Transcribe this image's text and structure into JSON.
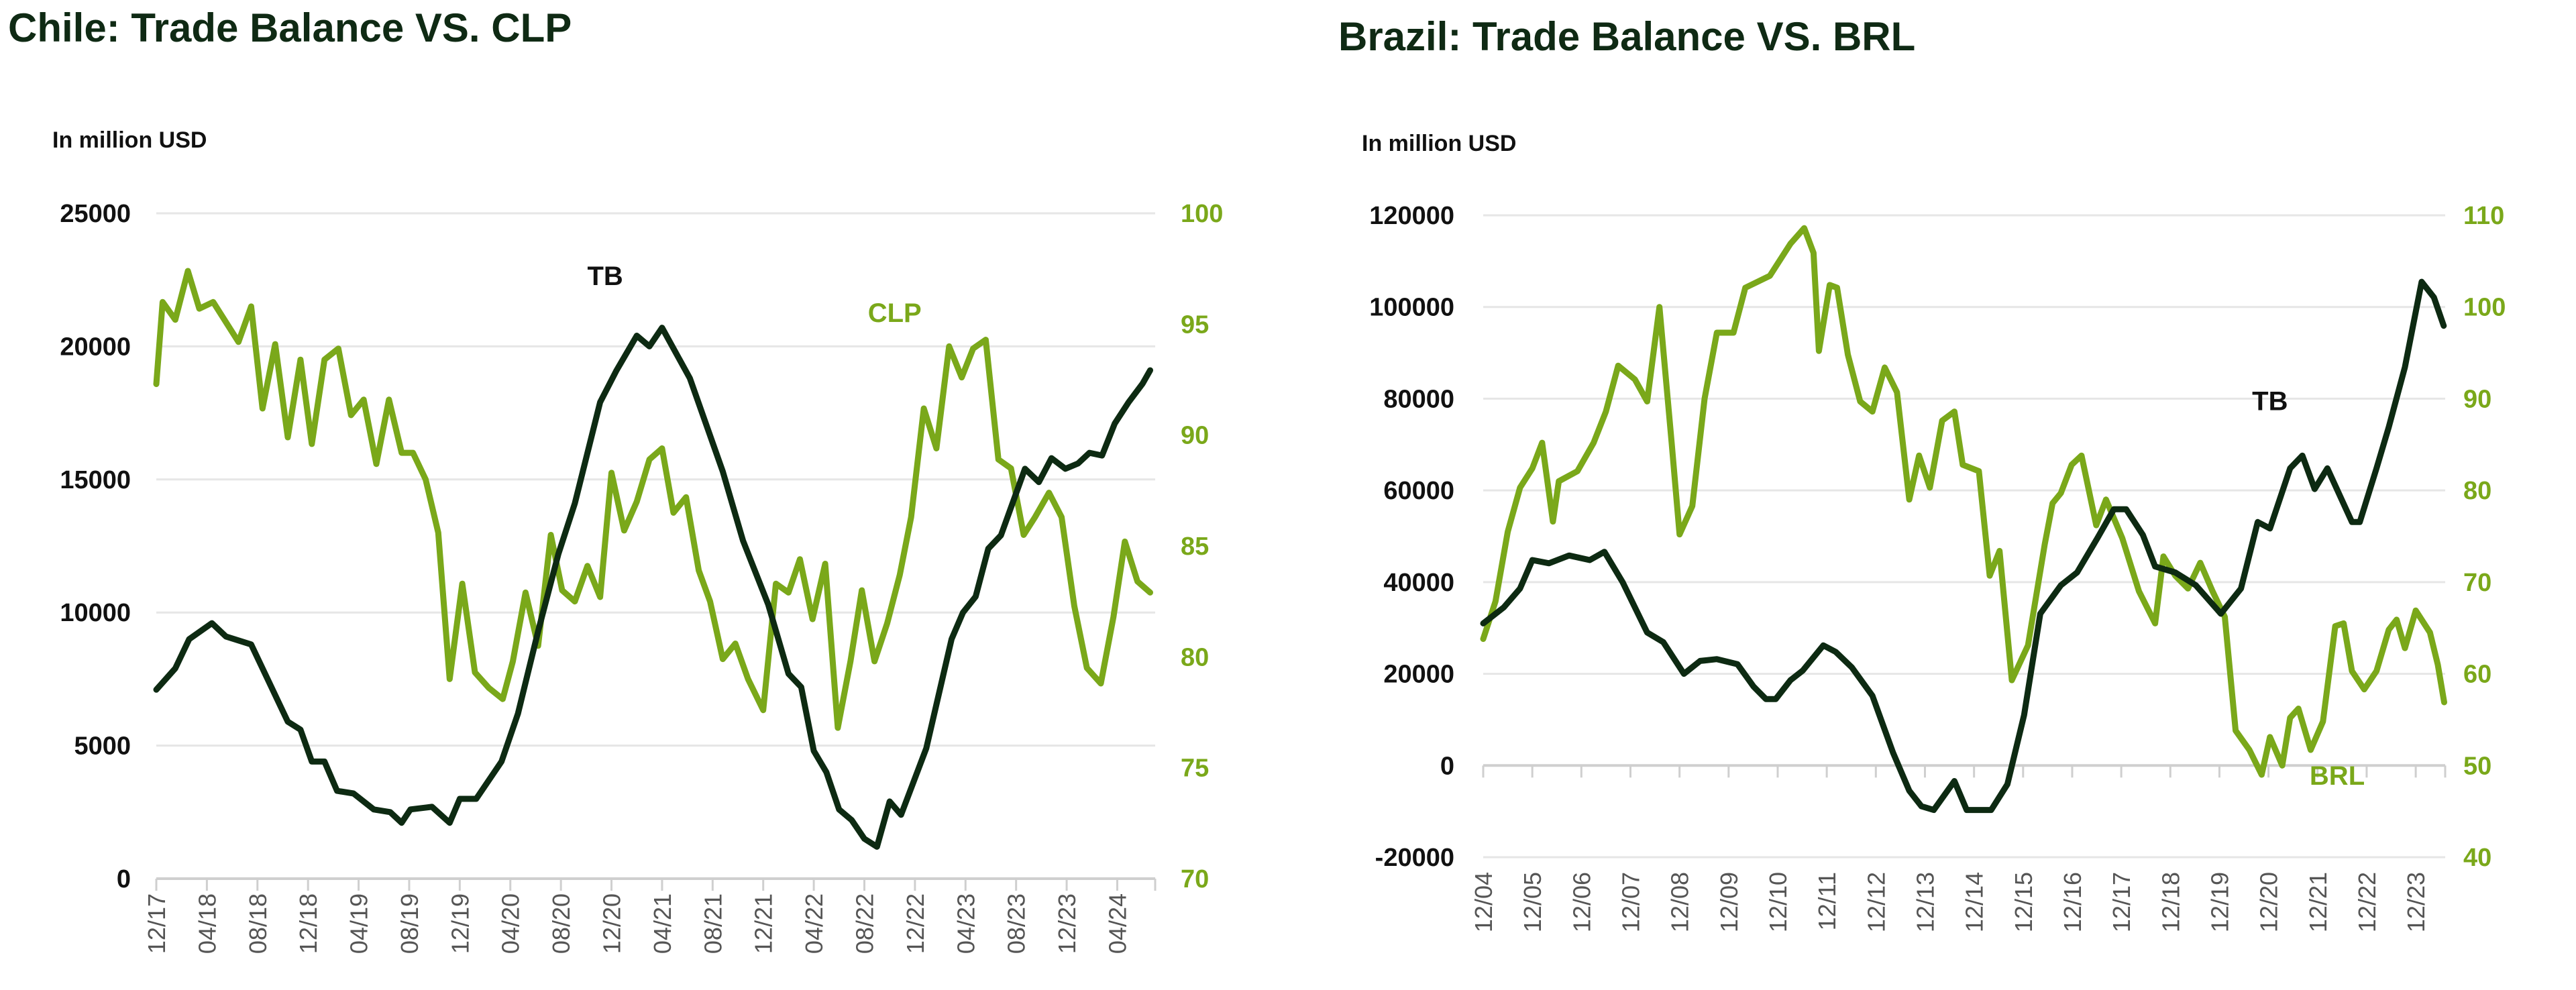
{
  "colors": {
    "tb": "#0d2a12",
    "fx": "#7aa81a",
    "title": "#0f2a14",
    "grid": "#e6e6e6"
  },
  "chart_data": [
    {
      "type": "line",
      "title": "Chile: Trade Balance VS. CLP",
      "ylabel": "In million USD",
      "x_unit": "months since 12/17",
      "xlim": [
        0,
        79
      ],
      "ylim": [
        0,
        25000
      ],
      "y2lim": [
        70,
        100
      ],
      "yticks": [
        "0",
        "5000",
        "10000",
        "15000",
        "20000",
        "25000"
      ],
      "y2ticks": [
        "70",
        "75",
        "80",
        "85",
        "90",
        "95",
        "100"
      ],
      "xticks": [
        "12/17",
        "04/18",
        "08/18",
        "12/18",
        "04/19",
        "08/19",
        "12/19",
        "04/20",
        "08/20",
        "12/20",
        "04/21",
        "08/21",
        "12/21",
        "04/22",
        "08/22",
        "12/22",
        "04/23",
        "08/23",
        "12/23",
        "04/24"
      ],
      "xtick_step": 4,
      "grid": true,
      "series": [
        {
          "name": "TB",
          "axis": "left",
          "label_at": [
            35.5,
            22300
          ],
          "x": [
            0,
            1.5,
            2.6,
            4.4,
            5.5,
            7.5,
            10.4,
            11.4,
            12.3,
            13.3,
            14.3,
            15.6,
            17.2,
            18.5,
            19.4,
            20.1,
            21.8,
            23.2,
            24,
            25.3,
            27.3,
            28.6,
            30.2,
            31.8,
            33.1,
            35.1,
            36.4,
            38,
            39,
            40,
            42.2,
            44.8,
            46.4,
            48.4,
            50,
            51,
            52,
            53,
            54,
            55,
            56,
            57,
            58,
            58.9,
            60.9,
            62.9,
            63.8,
            64.8,
            65.8,
            66.8,
            68.7,
            69.8,
            70.8,
            71.9,
            72.9,
            73.8,
            74.8,
            75.8,
            76.9,
            78,
            78.6
          ],
          "values": [
            7100,
            7900,
            9000,
            9600,
            9100,
            8800,
            5900,
            5600,
            4400,
            4400,
            3300,
            3200,
            2600,
            2500,
            2100,
            2600,
            2700,
            2100,
            3000,
            3000,
            4400,
            6200,
            9300,
            12200,
            14100,
            17900,
            19100,
            20400,
            20000,
            20700,
            18800,
            15300,
            12700,
            10300,
            7700,
            7200,
            4800,
            4000,
            2600,
            2200,
            1500,
            1200,
            2900,
            2400,
            4900,
            9000,
            10000,
            10600,
            12400,
            12900,
            15400,
            14900,
            15800,
            15400,
            15600,
            16000,
            15900,
            17100,
            17900,
            18600,
            19100
          ]
        },
        {
          "name": "CLP",
          "axis": "right",
          "label_at": [
            58.4,
            95.1
          ],
          "x": [
            0,
            0.5,
            1.5,
            2.5,
            3.4,
            4.5,
            6.5,
            7.5,
            8.4,
            9.4,
            10.4,
            11.4,
            12.3,
            13.3,
            14.4,
            15.4,
            16.4,
            17.4,
            18.4,
            19.4,
            20.3,
            21.3,
            22.3,
            23.2,
            24.2,
            25.2,
            26.3,
            27.4,
            28.2,
            29.2,
            30.2,
            31.2,
            32.1,
            33.1,
            34.1,
            35.1,
            36,
            37,
            38,
            39,
            40,
            40.9,
            41.9,
            42.9,
            43.8,
            44.8,
            45.8,
            46.8,
            48,
            49,
            50,
            50.9,
            51.9,
            52.9,
            53.9,
            54.9,
            55.8,
            56.8,
            57.8,
            58.8,
            59.7,
            60.7,
            61.7,
            62.7,
            63.7,
            64.6,
            65.6,
            66.6,
            67.6,
            68.6,
            69.5,
            70.6,
            71.6,
            72.6,
            73.6,
            74.7,
            75.7,
            76.6,
            77.6,
            78.6
          ],
          "values": [
            92.3,
            96.0,
            95.2,
            97.4,
            95.7,
            96.0,
            94.2,
            95.8,
            91.2,
            94.1,
            89.9,
            93.4,
            89.6,
            93.4,
            93.9,
            90.9,
            91.6,
            88.7,
            91.6,
            89.2,
            89.2,
            88.0,
            85.6,
            79.0,
            83.3,
            79.3,
            78.6,
            78.1,
            79.8,
            82.9,
            80.5,
            85.5,
            83.0,
            82.5,
            84.1,
            82.7,
            88.3,
            85.7,
            87.0,
            88.9,
            89.4,
            86.5,
            87.2,
            83.9,
            82.5,
            79.9,
            80.6,
            79.0,
            77.6,
            83.3,
            82.9,
            84.4,
            81.7,
            84.2,
            76.8,
            79.8,
            83.0,
            79.8,
            81.5,
            83.7,
            86.3,
            91.2,
            89.4,
            94.0,
            92.6,
            93.9,
            94.3,
            88.9,
            88.5,
            85.5,
            86.3,
            87.4,
            86.3,
            82.3,
            79.5,
            78.8,
            81.8,
            85.2,
            83.4,
            82.9
          ]
        }
      ]
    },
    {
      "type": "line",
      "title": "Brazil: Trade Balance VS. BRL",
      "ylabel": "In million USD",
      "x_unit": "years since 12/04",
      "xlim": [
        0,
        19.6
      ],
      "ylim": [
        -20000,
        120000
      ],
      "y2lim": [
        40,
        110
      ],
      "yticks": [
        "-20000",
        "0",
        "20000",
        "40000",
        "60000",
        "80000",
        "100000",
        "120000"
      ],
      "y2ticks": [
        "40",
        "50",
        "60",
        "70",
        "80",
        "90",
        "100",
        "110"
      ],
      "xticks": [
        "12/04",
        "12/05",
        "12/06",
        "12/07",
        "12/08",
        "12/09",
        "12/10",
        "12/11",
        "12/12",
        "12/13",
        "12/14",
        "12/15",
        "12/16",
        "12/17",
        "12/18",
        "12/19",
        "12/20",
        "12/21",
        "12/22",
        "12/23"
      ],
      "xtick_step": 1,
      "grid": true,
      "series": [
        {
          "name": "TB",
          "axis": "left",
          "label_at": [
            16.03,
            77500
          ],
          "x": [
            0,
            0.42,
            0.75,
            1.0,
            1.34,
            1.75,
            2.17,
            2.47,
            2.84,
            3.34,
            3.67,
            4.09,
            4.42,
            4.76,
            5.18,
            5.51,
            5.76,
            5.96,
            6.26,
            6.51,
            6.93,
            7.18,
            7.51,
            7.93,
            8.35,
            8.68,
            8.93,
            9.18,
            9.6,
            9.85,
            10.35,
            10.68,
            11.02,
            11.35,
            11.77,
            12.1,
            12.52,
            12.85,
            13.1,
            13.44,
            13.69,
            14.1,
            14.52,
            15.03,
            15.44,
            15.78,
            16.03,
            16.44,
            16.69,
            16.94,
            17.2,
            17.7,
            17.86,
            18.2,
            18.45,
            18.78,
            19.12,
            19.37,
            19.57
          ],
          "values": [
            31000,
            34500,
            38600,
            44800,
            44100,
            45800,
            44800,
            46600,
            40000,
            29000,
            26900,
            20000,
            22800,
            23200,
            22100,
            17200,
            14500,
            14500,
            18600,
            20700,
            26200,
            24800,
            21400,
            15200,
            2800,
            -5500,
            -8900,
            -9700,
            -3400,
            -9700,
            -9700,
            -4100,
            11000,
            33100,
            39300,
            42100,
            49700,
            55900,
            55900,
            50300,
            43400,
            42100,
            39300,
            33100,
            38600,
            53100,
            51700,
            64800,
            67600,
            60300,
            64800,
            53100,
            53100,
            64800,
            73800,
            86900,
            105500,
            102100,
            95900
          ]
        },
        {
          "name": "BRL",
          "axis": "right",
          "label_at": [
            17.4,
            47.9
          ],
          "x": [
            0,
            0.25,
            0.5,
            0.75,
            1.0,
            1.2,
            1.42,
            1.54,
            1.92,
            2.25,
            2.5,
            2.75,
            3.09,
            3.34,
            3.59,
            3.84,
            4.0,
            4.26,
            4.51,
            4.76,
            5.1,
            5.34,
            5.84,
            6.26,
            6.54,
            6.73,
            6.84,
            7.06,
            7.21,
            7.43,
            7.68,
            7.93,
            8.18,
            8.43,
            8.68,
            8.88,
            9.1,
            9.35,
            9.6,
            9.77,
            10.1,
            10.32,
            10.52,
            10.77,
            11.1,
            11.44,
            11.6,
            11.77,
            11.99,
            12.19,
            12.49,
            12.69,
            13.02,
            13.36,
            13.69,
            13.86,
            14.1,
            14.36,
            14.61,
            14.86,
            15.11,
            15.33,
            15.61,
            15.86,
            16.03,
            16.28,
            16.44,
            16.61,
            16.86,
            17.11,
            17.36,
            17.53,
            17.7,
            17.95,
            18.2,
            18.45,
            18.61,
            18.78,
            19.0,
            19.29,
            19.45,
            19.58
          ],
          "values": [
            63.8,
            67.9,
            75.5,
            80.3,
            82.4,
            85.2,
            76.6,
            81.0,
            82.1,
            85.2,
            88.6,
            93.6,
            92.1,
            89.7,
            100,
            85.2,
            75.2,
            78.3,
            90,
            97.2,
            97.2,
            102.1,
            103.4,
            106.9,
            108.6,
            105.9,
            95.2,
            102.4,
            102.1,
            94.8,
            89.7,
            88.6,
            93.4,
            90.7,
            79,
            83.8,
            80.3,
            87.6,
            88.6,
            82.8,
            82.1,
            70.7,
            73.4,
            59.3,
            63.1,
            74.1,
            78.6,
            79.7,
            82.8,
            83.8,
            76.2,
            79,
            74.8,
            69.0,
            65.5,
            72.8,
            70.7,
            69.3,
            72.1,
            69.0,
            66.2,
            53.8,
            51.7,
            49.0,
            53.1,
            50,
            55.2,
            56.2,
            51.7,
            54.8,
            65.2,
            65.5,
            60.3,
            58.3,
            60.3,
            64.8,
            65.9,
            62.8,
            66.9,
            64.5,
            61.0,
            56.9
          ]
        }
      ]
    }
  ]
}
